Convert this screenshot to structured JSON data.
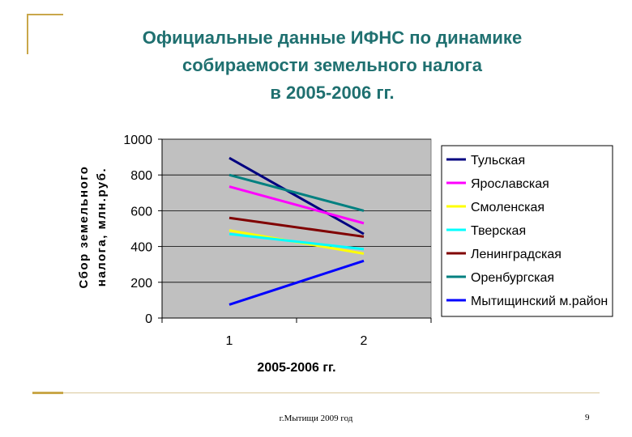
{
  "slide": {
    "title": "Официальные данные ИФНС по динамике\nсобираемости земельного налога\nв 2005-2006 гг.",
    "footer_text": "г.Мытищи 2009 год",
    "page_number": "9",
    "accent_color": "#c9a74a",
    "title_color": "#1f7070"
  },
  "chart_data": {
    "type": "line",
    "title": "",
    "xlabel": "2005-2006 гг.",
    "ylabel": "Сбор земельного налога, млн.руб.",
    "categories": [
      "1",
      "2"
    ],
    "ylim": [
      0,
      1000
    ],
    "yticks": [
      0,
      200,
      400,
      600,
      800,
      1000
    ],
    "grid": true,
    "plot_background": "#c0c0c0",
    "legend_position": "right",
    "series": [
      {
        "name": "Тульская",
        "values": [
          895,
          470
        ],
        "color": "#000080"
      },
      {
        "name": "Ярославская",
        "values": [
          735,
          530
        ],
        "color": "#ff00ff"
      },
      {
        "name": "Смоленская",
        "values": [
          490,
          360
        ],
        "color": "#ffff00"
      },
      {
        "name": "Тверская",
        "values": [
          470,
          385
        ],
        "color": "#00ffff"
      },
      {
        "name": "Ленинградская",
        "values": [
          560,
          455
        ],
        "color": "#800000"
      },
      {
        "name": "Оренбургская",
        "values": [
          800,
          600
        ],
        "color": "#008080"
      },
      {
        "name": "Мытищинский м.район",
        "values": [
          75,
          320
        ],
        "color": "#0000ff"
      }
    ]
  }
}
